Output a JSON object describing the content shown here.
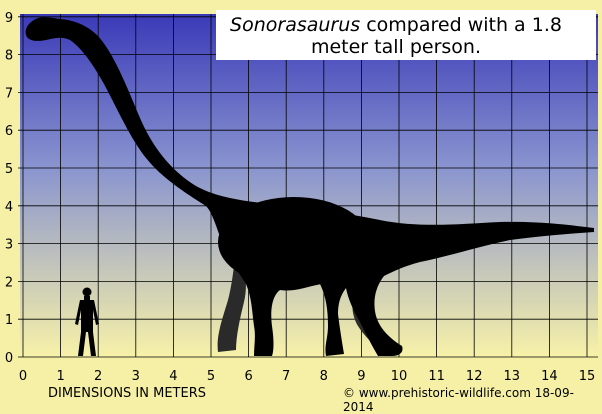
{
  "title": {
    "name": "Sonorasaurus",
    "rest": " compared with a 1.8",
    "line2": "meter tall person."
  },
  "axes": {
    "x_ticks": [
      "0",
      "1",
      "2",
      "3",
      "4",
      "5",
      "6",
      "7",
      "8",
      "9",
      "10",
      "11",
      "12",
      "13",
      "14",
      "15"
    ],
    "y_ticks": [
      "0",
      "1",
      "2",
      "3",
      "4",
      "5",
      "6",
      "7",
      "8",
      "9"
    ],
    "xlabel": "DIMENSIONS IN METERS",
    "x_range": [
      0,
      15
    ],
    "y_range": [
      0,
      9
    ]
  },
  "subjects": {
    "dinosaur_icon": "sauropod-silhouette",
    "person_icon": "human-silhouette",
    "person_height_m": 1.8
  },
  "credit": "© www.prehistoric-wildlife.com 18-09-2014",
  "colors": {
    "sky_top": "#3a3ab8",
    "sky_bottom": "#f8f2a8",
    "grid": "#000000",
    "silhouette": "#000000",
    "far_legs": "#2a2a2a"
  }
}
